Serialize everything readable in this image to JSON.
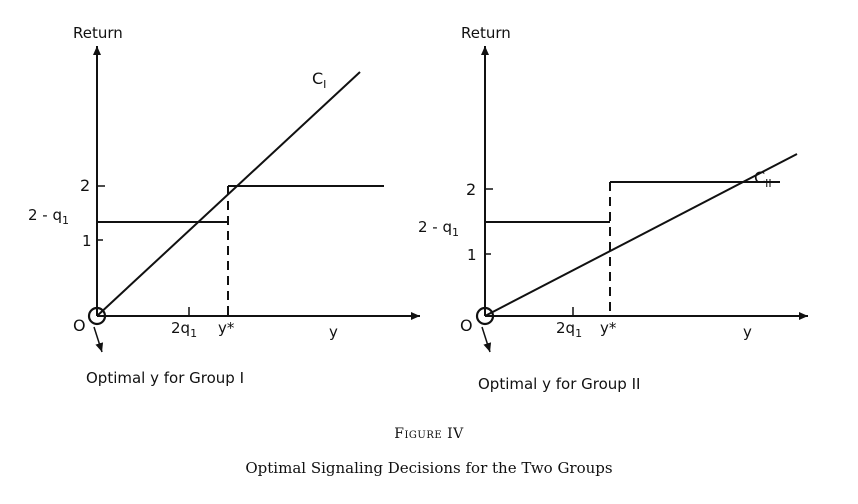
{
  "figure": {
    "number": "Figure IV",
    "title": "Optimal Signaling Decisions for the Two Groups"
  },
  "panels": [
    {
      "y_axis_label": "Return",
      "x_axis_label": "y",
      "origin_label": "O",
      "y_ticks": [
        "2",
        "2 - q",
        "1"
      ],
      "y_tick_subscript": "1",
      "x_ticks": [
        "2q",
        "y*"
      ],
      "x_tick_subscript": "1",
      "curve_label": "C",
      "curve_subscript": "I",
      "callout": "Optimal y for Group I"
    },
    {
      "y_axis_label": "Return",
      "x_axis_label": "y",
      "origin_label": "O",
      "y_ticks": [
        "2",
        "2 - q",
        "1"
      ],
      "y_tick_subscript": "1",
      "x_ticks": [
        "2q",
        "y*"
      ],
      "x_tick_subscript": "1",
      "curve_label": "C",
      "curve_subscript": "II",
      "callout": "Optimal y for Group II"
    }
  ]
}
